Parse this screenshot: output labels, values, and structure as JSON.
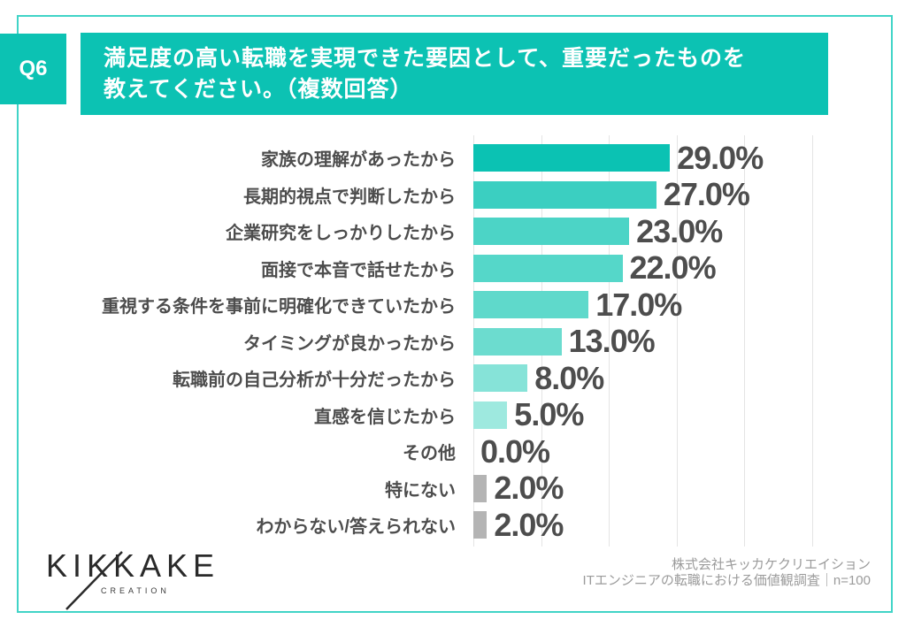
{
  "header": {
    "badge": "Q6",
    "title_line1": "満足度の高い転職を実現できた要因として、重要だったものを",
    "title_line2": "教えてください。（複数回答）"
  },
  "chart_data": {
    "type": "bar",
    "orientation": "horizontal",
    "title": "満足度の高い転職を実現できた要因として、重要だったものを教えてください。（複数回答）",
    "categories": [
      "家族の理解があったから",
      "長期的視点で判断したから",
      "企業研究をしっかりしたから",
      "面接で本音で話せたから",
      "重視する条件を事前に明確化できていたから",
      "タイミングが良かったから",
      "転職前の自己分析が十分だったから",
      "直感を信じたから",
      "その他",
      "特にない",
      "わからない/答えられない"
    ],
    "values": [
      29.0,
      27.0,
      23.0,
      22.0,
      17.0,
      13.0,
      8.0,
      5.0,
      0.0,
      2.0,
      2.0
    ],
    "value_labels": [
      "29.0%",
      "27.0%",
      "23.0%",
      "22.0%",
      "17.0%",
      "13.0%",
      "8.0%",
      "5.0%",
      "0.0%",
      "2.0%",
      "2.0%"
    ],
    "bar_colors": [
      "#0bc2b3",
      "#3bcfc1",
      "#4cd4c6",
      "#55d7c9",
      "#5fd9cb",
      "#6cdccf",
      "#86e3d8",
      "#9ee9df",
      null,
      "#b4b4b4",
      "#b4b4b4"
    ],
    "xlabel": "",
    "ylabel": "",
    "xlim": [
      0,
      50
    ],
    "gridline_interval": 10,
    "grid": true,
    "legend": false
  },
  "footer": {
    "logo_text": "KIKKAKE",
    "logo_subtext": "CREATION",
    "credit_line1": "株式会社キッカケクリエイション",
    "credit_line2": "ITエンジニアの転職における価値観調査｜n=100"
  },
  "colors": {
    "accent": "#0cc2b3",
    "frame_border": "#41d4c7",
    "label_text": "#4d4d4d",
    "gray_bar": "#b4b4b4",
    "gridline": "#e4e4e4",
    "credit_text": "#9b9b9b",
    "logo_text": "#2a2a2a"
  }
}
